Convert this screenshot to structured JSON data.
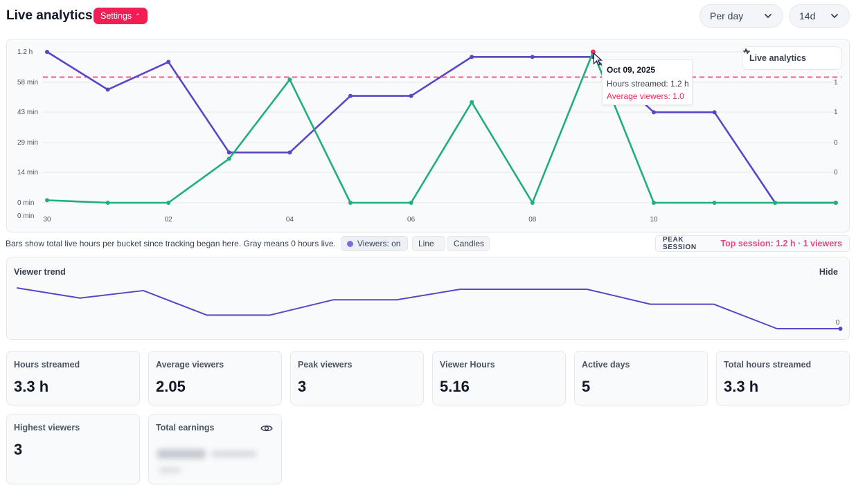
{
  "header": {
    "title": "Live analytics",
    "settings_label": "Settings",
    "period_select": "Per day",
    "range_select": "14d"
  },
  "chart_data": {
    "type": "line",
    "x_tick_labels": [
      "30",
      "02",
      "04",
      "06",
      "08",
      "10"
    ],
    "left_tick_labels": [
      "1.2 h",
      "58 min",
      "43 min",
      "29 min",
      "14 min",
      "0 min",
      "0 min"
    ],
    "right_tick_labels": [
      "1",
      "1",
      "0",
      "0"
    ],
    "series": [
      {
        "color": "#5b45c7",
        "values": [
          1.2,
          0.9,
          1.12,
          0.4,
          0.4,
          0.85,
          0.85,
          1.16,
          1.16,
          1.16,
          0.72,
          0.72,
          0.0,
          0.0
        ]
      },
      {
        "color": "#1fae7c",
        "values": [
          0.02,
          0.0,
          0.0,
          0.35,
          0.98,
          0.0,
          0.0,
          0.8,
          0.0,
          1.2,
          0.0,
          0.0,
          0.0,
          0.0
        ]
      }
    ],
    "reference_line": {
      "color": "#e0325e",
      "value": 1.0
    },
    "ylim": [
      0,
      1.2
    ],
    "grid": true,
    "highlight_index": 9
  },
  "legend_toggle": {
    "label": "Live analytics"
  },
  "tooltip": {
    "date": "Oct 09, 2025",
    "hours_line": "Hours streamed: 1.2 h",
    "avg_line": "Average viewers: 1.0"
  },
  "caption": {
    "text": "Bars show total live hours per bucket since tracking began here. Gray means 0 hours live.",
    "viewers_chip": "Viewers: on",
    "line_chip": "Line",
    "candles_chip": "Candles",
    "peak_label": "PEAK SESSION",
    "peak_value": "Top session: 1.2 h · 1 viewers"
  },
  "trend": {
    "title": "Viewer trend",
    "hide_label": "Hide",
    "end_label": "0",
    "values": [
      1.2,
      0.9,
      1.12,
      0.4,
      0.4,
      0.85,
      0.85,
      1.16,
      1.16,
      1.16,
      0.72,
      0.72,
      0.0,
      0.0
    ]
  },
  "stats": [
    {
      "label": "Hours streamed",
      "value": "3.3 h"
    },
    {
      "label": "Average viewers",
      "value": "2.05"
    },
    {
      "label": "Peak viewers",
      "value": "3"
    },
    {
      "label": "Viewer Hours",
      "value": "5.16"
    },
    {
      "label": "Active days",
      "value": "5"
    },
    {
      "label": "Total hours streamed",
      "value": "3.3 h"
    },
    {
      "label": "Highest viewers",
      "value": "3"
    },
    {
      "label": "Total earnings",
      "value": ""
    }
  ]
}
